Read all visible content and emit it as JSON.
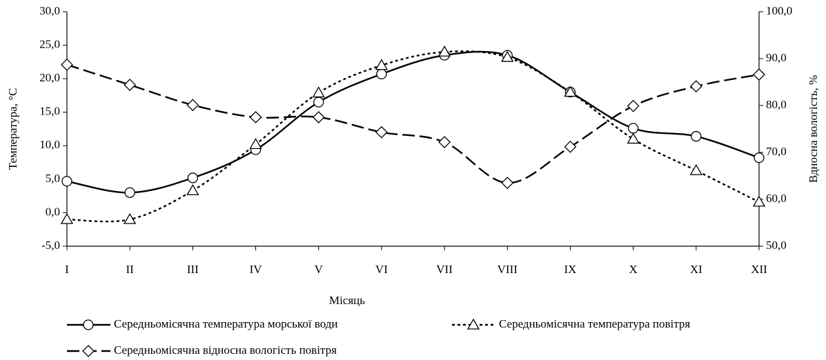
{
  "chart_data": {
    "type": "line",
    "xlabel": "Місяць",
    "ylabel": "Температура, °С",
    "y2label": "Вдносна вологість, %",
    "categories": [
      "I",
      "II",
      "III",
      "IV",
      "V",
      "VI",
      "VII",
      "VIII",
      "IX",
      "X",
      "XI",
      "XII"
    ],
    "ylim": [
      -5,
      30
    ],
    "yticks": [
      {
        "value": -5,
        "label": "-5,0"
      },
      {
        "value": 0,
        "label": "0,0"
      },
      {
        "value": 5,
        "label": "5,0"
      },
      {
        "value": 10,
        "label": "10,0"
      },
      {
        "value": 15,
        "label": "15,0"
      },
      {
        "value": 20,
        "label": "20,0"
      },
      {
        "value": 25,
        "label": "25,0"
      },
      {
        "value": 30,
        "label": "30,0"
      }
    ],
    "y2lim": [
      50,
      100
    ],
    "y2ticks": [
      {
        "value": 50,
        "label": "50,0"
      },
      {
        "value": 60,
        "label": "60,0"
      },
      {
        "value": 70,
        "label": "70,0"
      },
      {
        "value": 80,
        "label": "80,0"
      },
      {
        "value": 90,
        "label": "90,0"
      },
      {
        "value": 100,
        "label": "100,0"
      }
    ],
    "series": [
      {
        "name": "Середньомісячна температура морської води",
        "color": "#000000",
        "marker": "circle",
        "dash": "solid",
        "values": [
          4.7,
          3.0,
          5.2,
          9.4,
          16.5,
          20.7,
          23.5,
          23.5,
          18.0,
          12.6,
          11.4,
          8.2
        ]
      },
      {
        "name": "Середньомісячна температура повітря",
        "color": "#000000",
        "marker": "triangle",
        "dash": "dotted",
        "values": [
          -1.0,
          -1.0,
          3.3,
          10.2,
          17.9,
          22.0,
          24.0,
          23.2,
          18.0,
          11.0,
          6.3,
          1.6
        ]
      },
      {
        "name": "Середньомісячна відносна вологість повітря",
        "color": "#000000",
        "marker": "diamond",
        "dash": "dashed",
        "axis": "y2",
        "values": [
          88.7,
          84.4,
          80.1,
          77.5,
          77.5,
          74.3,
          72.2,
          63.5,
          71.2,
          79.9,
          84.1,
          86.6
        ]
      }
    ]
  }
}
